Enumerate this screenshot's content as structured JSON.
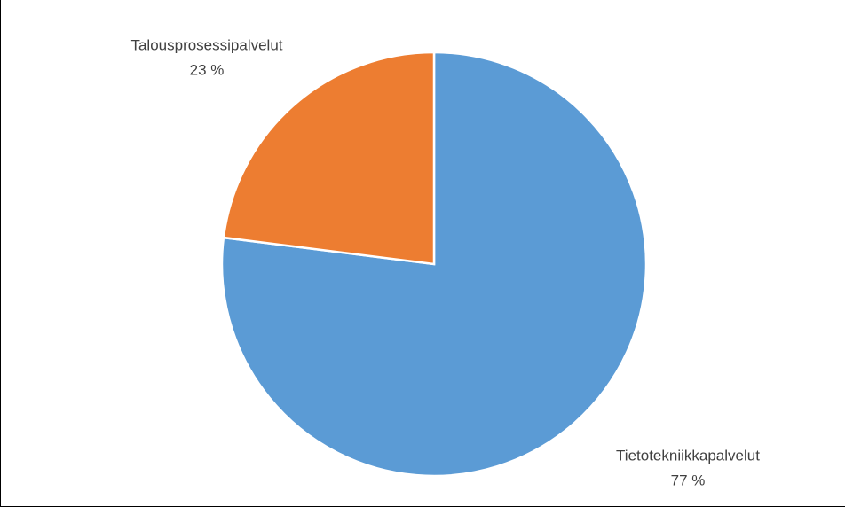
{
  "chart_data": {
    "type": "pie",
    "categories": [
      "Tietotekniikkapalvelut",
      "Talousprosessipalvelut"
    ],
    "values": [
      77,
      23
    ],
    "value_labels": [
      "77 %",
      "23 %"
    ],
    "colors": [
      "#5b9bd5",
      "#ed7d31"
    ]
  }
}
